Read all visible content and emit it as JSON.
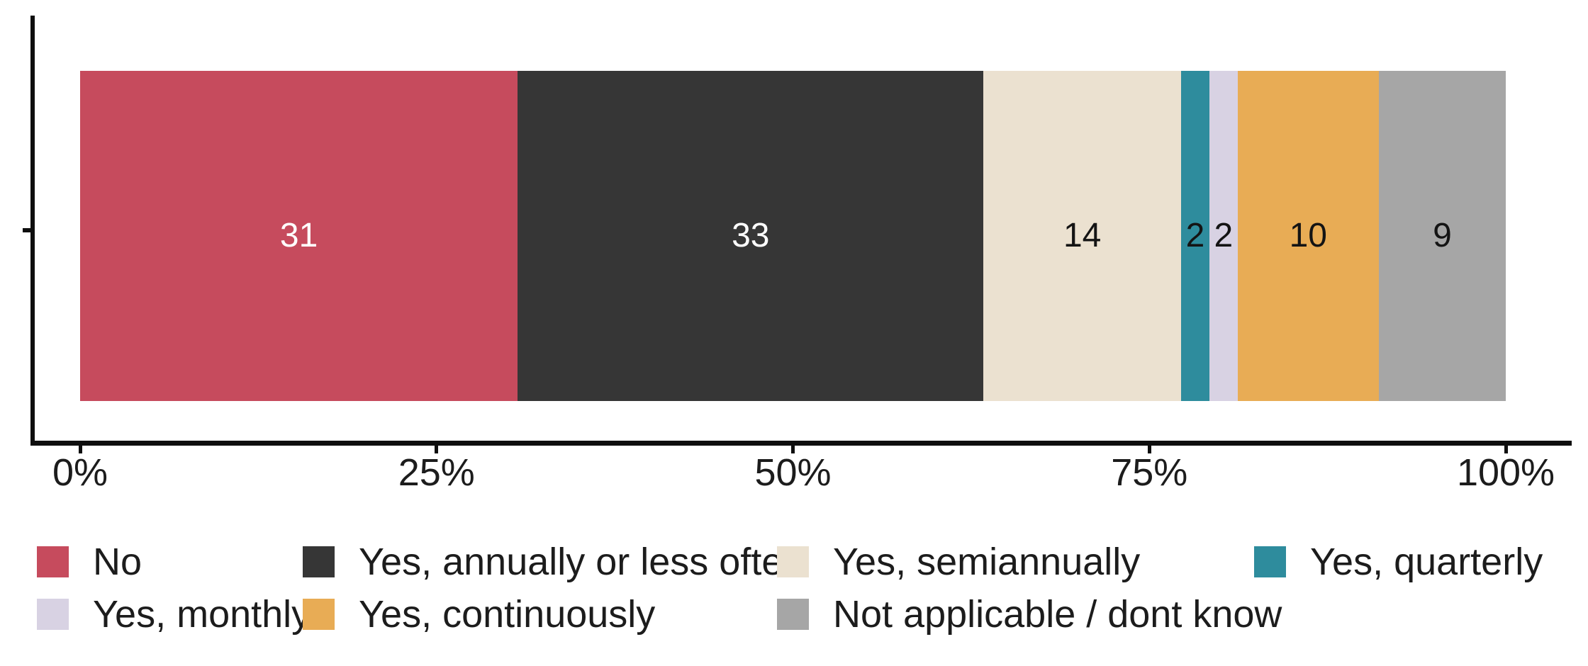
{
  "chart_data": {
    "type": "bar",
    "subtype": "horizontal-stacked-percentage",
    "title": "",
    "xlabel": "",
    "ylabel": "",
    "categories": [
      ""
    ],
    "xlim": [
      0,
      100
    ],
    "x_tick_values": [
      0,
      25,
      50,
      75,
      100
    ],
    "x_tick_labels": [
      "0%",
      "25%",
      "50%",
      "75%",
      "100%"
    ],
    "grid": "off",
    "legend_position": "bottom",
    "series": [
      {
        "name": "No",
        "value": 31,
        "data_label": "31",
        "color": "#C64B5D",
        "label_color": "#FFFFFF"
      },
      {
        "name": "Yes, annually or less often",
        "value": 33,
        "data_label": "33",
        "color": "#363636",
        "label_color": "#FFFFFF"
      },
      {
        "name": "Yes, semiannually",
        "value": 14,
        "data_label": "14",
        "color": "#EBE1D0",
        "label_color": "#141414"
      },
      {
        "name": "Yes, quarterly",
        "value": 2,
        "data_label": "2",
        "color": "#2E8C9D",
        "label_color": "#141414"
      },
      {
        "name": "Yes, monthly",
        "value": 2,
        "data_label": "2",
        "color": "#D8D2E3",
        "label_color": "#141414"
      },
      {
        "name": "Yes, continuously",
        "value": 10,
        "data_label": "10",
        "color": "#E8AC55",
        "label_color": "#141414"
      },
      {
        "name": "Not applicable / dont know",
        "value": 9,
        "data_label": "9",
        "color": "#A6A6A6",
        "label_color": "#141414"
      }
    ],
    "legend_rows": [
      [
        0,
        1,
        2,
        3
      ],
      [
        4,
        5,
        6
      ]
    ]
  },
  "style": {
    "axis_color": "#0E0E0E",
    "text_color": "#1C1C1C",
    "background": "#FFFFFF"
  }
}
